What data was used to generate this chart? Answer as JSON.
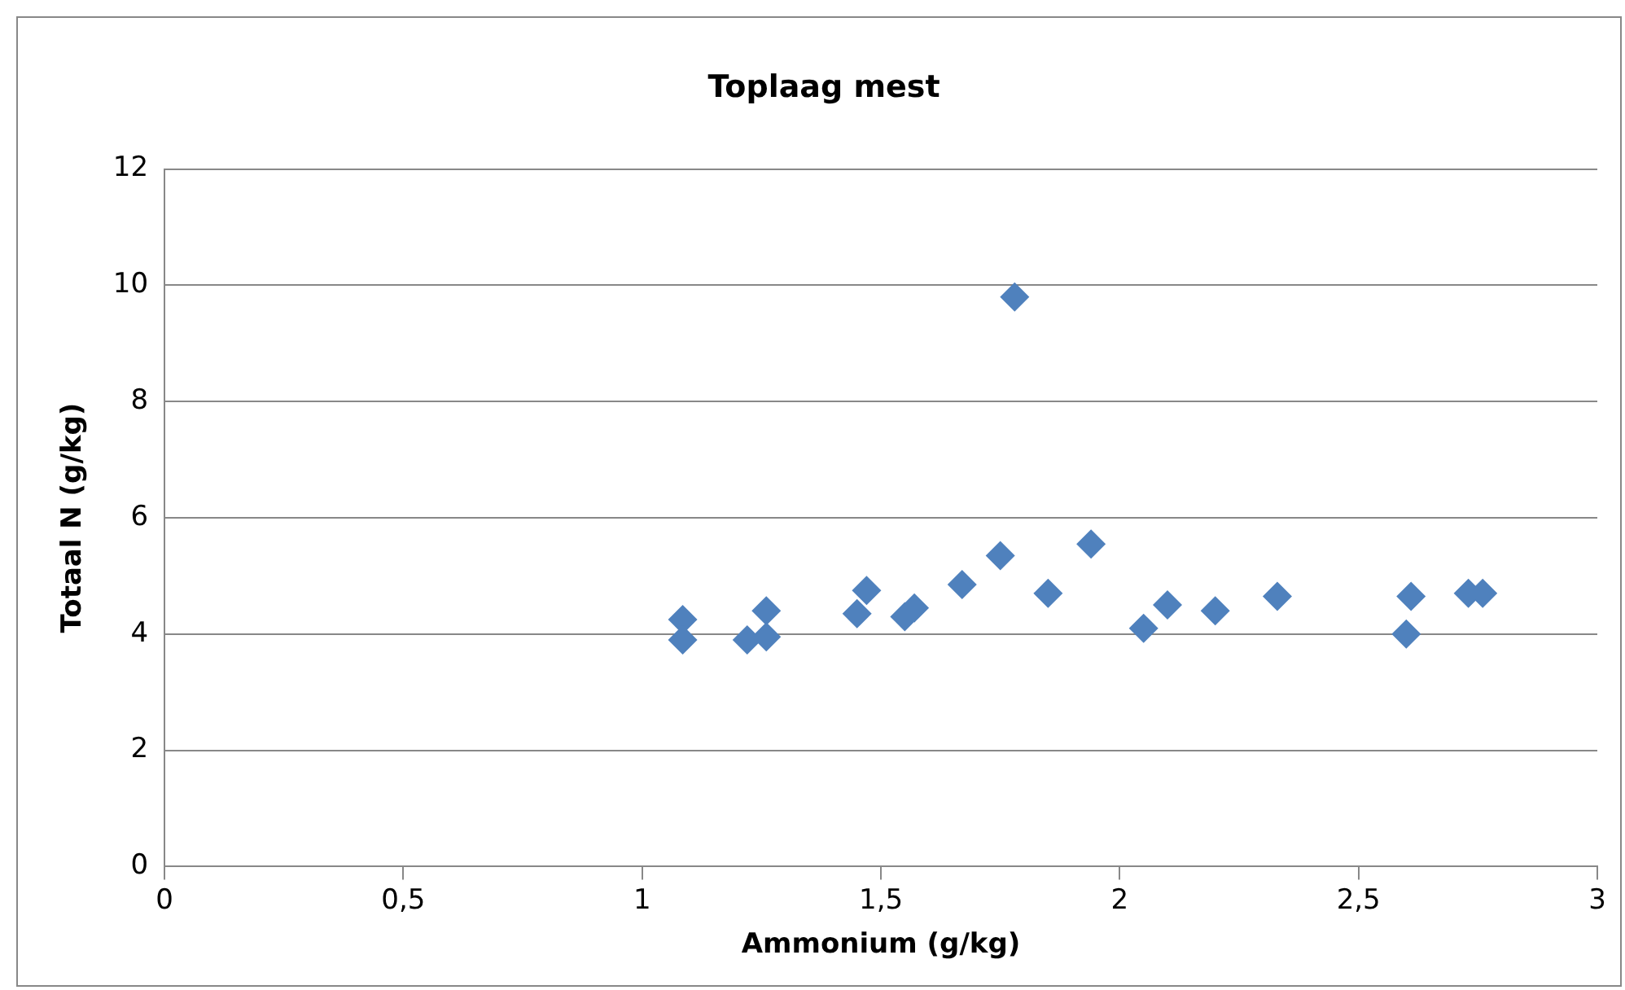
{
  "chart_data": {
    "type": "scatter",
    "title": "Toplaag mest",
    "xlabel": "Ammonium (g/kg)",
    "ylabel": "Totaal N (g/kg)",
    "x": [
      1.085,
      1.085,
      1.22,
      1.26,
      1.26,
      1.45,
      1.47,
      1.55,
      1.57,
      1.67,
      1.75,
      1.78,
      1.85,
      1.94,
      2.05,
      2.1,
      2.2,
      2.33,
      2.6,
      2.61,
      2.73,
      2.76
    ],
    "series": [
      {
        "color": "#4f81bd",
        "values": [
          4.25,
          3.9,
          3.9,
          4.4,
          3.95,
          4.35,
          4.75,
          4.3,
          4.45,
          4.85,
          5.35,
          9.8,
          4.7,
          5.55,
          4.1,
          4.5,
          4.4,
          4.65,
          4.0,
          4.65,
          4.7,
          4.7
        ]
      }
    ],
    "xlim": [
      0,
      3
    ],
    "xticks": [
      {
        "value": 0,
        "label": "0"
      },
      {
        "value": 0.5,
        "label": "0,5"
      },
      {
        "value": 1,
        "label": "1"
      },
      {
        "value": 1.5,
        "label": "1,5"
      },
      {
        "value": 2,
        "label": "2"
      },
      {
        "value": 2.5,
        "label": "2,5"
      },
      {
        "value": 3,
        "label": "3"
      }
    ],
    "ylim": [
      0,
      12
    ],
    "yticks": [
      0,
      2,
      4,
      6,
      8,
      10,
      12
    ],
    "grid": "y",
    "marker": "diamond",
    "legend": false
  }
}
